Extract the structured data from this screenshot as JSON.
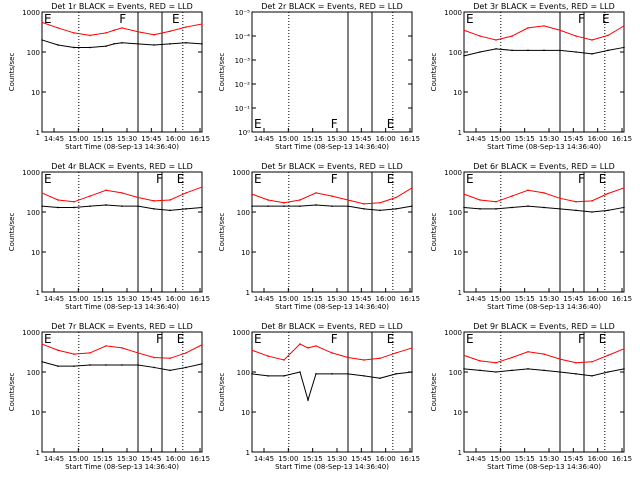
{
  "chart_data": [
    {
      "type": "line",
      "title": "Det 1r BLACK = Events, RED = LLD",
      "xlabel": "Start Time (08-Sep-13 14:36:40)",
      "ylabel": "Counts/sec",
      "x_ticks": [
        "14:45",
        "15:00",
        "15:15",
        "15:30",
        "15:45",
        "16:00",
        "16:15"
      ],
      "y_scale": "log",
      "y_ticks": [
        "1",
        "10",
        "100",
        "1000"
      ],
      "ylim": [
        1,
        1000
      ],
      "series": [
        {
          "name": "Events",
          "color": "#000000",
          "x": [
            0,
            0.1,
            0.2,
            0.3,
            0.4,
            0.45,
            0.5,
            0.6,
            0.7,
            0.8,
            0.9,
            1
          ],
          "y": [
            200,
            150,
            130,
            130,
            140,
            160,
            170,
            160,
            150,
            160,
            170,
            160
          ]
        },
        {
          "name": "LLD",
          "color": "#ff0000",
          "x": [
            0,
            0.1,
            0.2,
            0.3,
            0.4,
            0.45,
            0.5,
            0.6,
            0.7,
            0.8,
            0.9,
            1
          ],
          "y": [
            550,
            400,
            300,
            260,
            300,
            350,
            400,
            320,
            270,
            330,
            420,
            500
          ]
        }
      ],
      "markers": [
        {
          "label": "E",
          "x": 0.0
        },
        {
          "label": "F",
          "x": 0.47
        },
        {
          "label": "E",
          "x": 0.8
        }
      ]
    },
    {
      "type": "line",
      "title": "Det 2r BLACK = Events, RED = LLD",
      "xlabel": "Start Time (08-Sep-13 14:36:40)",
      "ylabel": "Counts/sec",
      "x_ticks": [
        "14:45",
        "15:00",
        "15:15",
        "15:30",
        "15:45",
        "16:00",
        "16:15"
      ],
      "y_scale": "log",
      "y_ticks": [
        "10⁻⁵",
        "10⁻⁴",
        "10⁻³",
        "10⁻²",
        "10⁻¹",
        "10⁰"
      ],
      "ylim": [
        1,
        1e-05
      ],
      "series": [],
      "markers": [
        {
          "label": "E",
          "x": 0.0
        },
        {
          "label": "F",
          "x": 0.48
        },
        {
          "label": "E",
          "x": 0.83
        }
      ]
    },
    {
      "type": "line",
      "title": "Det 3r BLACK = Events, RED = LLD",
      "xlabel": "Start Time (08-Sep-13 14:36:40)",
      "ylabel": "Counts/sec",
      "x_ticks": [
        "14:45",
        "15:00",
        "15:15",
        "15:30",
        "15:45",
        "16:00",
        "16:15"
      ],
      "y_scale": "log",
      "y_ticks": [
        "1",
        "10",
        "100",
        "1000"
      ],
      "ylim": [
        1,
        1000
      ],
      "series": [
        {
          "name": "Events",
          "color": "#000000",
          "x": [
            0,
            0.1,
            0.2,
            0.3,
            0.4,
            0.5,
            0.6,
            0.7,
            0.8,
            0.9,
            1
          ],
          "y": [
            80,
            100,
            120,
            110,
            110,
            110,
            110,
            100,
            90,
            110,
            130
          ]
        },
        {
          "name": "LLD",
          "color": "#ff0000",
          "x": [
            0,
            0.1,
            0.2,
            0.3,
            0.4,
            0.5,
            0.6,
            0.7,
            0.8,
            0.9,
            1
          ],
          "y": [
            350,
            250,
            200,
            250,
            400,
            450,
            350,
            250,
            200,
            260,
            450
          ]
        }
      ],
      "markers": [
        {
          "label": "E",
          "x": 0.0
        },
        {
          "label": "F",
          "x": 0.7
        },
        {
          "label": "E",
          "x": 0.85
        }
      ]
    },
    {
      "type": "line",
      "title": "Det 4r BLACK = Events, RED = LLD",
      "xlabel": "Start Time (08-Sep-13 14:36:40)",
      "ylabel": "Counts/sec",
      "x_ticks": [
        "14:45",
        "15:00",
        "15:15",
        "15:30",
        "15:45",
        "16:00",
        "16:15"
      ],
      "y_scale": "log",
      "y_ticks": [
        "1",
        "10",
        "100",
        "1000"
      ],
      "ylim": [
        1,
        1000
      ],
      "series": [
        {
          "name": "Events",
          "color": "#000000",
          "x": [
            0,
            0.1,
            0.2,
            0.3,
            0.4,
            0.5,
            0.6,
            0.7,
            0.8,
            0.9,
            1
          ],
          "y": [
            140,
            130,
            130,
            140,
            150,
            140,
            140,
            120,
            110,
            120,
            130
          ]
        },
        {
          "name": "LLD",
          "color": "#ff0000",
          "x": [
            0,
            0.1,
            0.2,
            0.3,
            0.4,
            0.5,
            0.6,
            0.7,
            0.8,
            0.9,
            1
          ],
          "y": [
            300,
            200,
            180,
            250,
            350,
            300,
            230,
            190,
            200,
            300,
            420
          ]
        }
      ],
      "markers": [
        {
          "label": "E",
          "x": 0.0
        },
        {
          "label": "F",
          "x": 0.7
        },
        {
          "label": "E",
          "x": 0.83
        }
      ]
    },
    {
      "type": "line",
      "title": "Det 5r BLACK = Events, RED = LLD",
      "xlabel": "Start Time (08-Sep-13 14:36:40)",
      "ylabel": "Counts/sec",
      "x_ticks": [
        "14:45",
        "15:00",
        "15:15",
        "15:30",
        "15:45",
        "16:00",
        "16:15"
      ],
      "y_scale": "log",
      "y_ticks": [
        "1",
        "10",
        "100",
        "1000"
      ],
      "ylim": [
        1,
        1000
      ],
      "series": [
        {
          "name": "Events",
          "color": "#000000",
          "x": [
            0,
            0.1,
            0.2,
            0.3,
            0.4,
            0.5,
            0.6,
            0.7,
            0.8,
            0.9,
            1
          ],
          "y": [
            140,
            140,
            140,
            140,
            150,
            140,
            140,
            120,
            110,
            120,
            140
          ]
        },
        {
          "name": "LLD",
          "color": "#ff0000",
          "x": [
            0,
            0.1,
            0.2,
            0.3,
            0.4,
            0.5,
            0.6,
            0.7,
            0.8,
            0.9,
            1
          ],
          "y": [
            280,
            200,
            170,
            200,
            300,
            250,
            200,
            160,
            170,
            230,
            400
          ]
        }
      ],
      "markers": [
        {
          "label": "E",
          "x": 0.0
        },
        {
          "label": "F",
          "x": 0.48
        },
        {
          "label": "E",
          "x": 0.83
        }
      ]
    },
    {
      "type": "line",
      "title": "Det 6r BLACK = Events, RED = LLD",
      "xlabel": "Start Time (08-Sep-13 14:36:40)",
      "ylabel": "Counts/sec",
      "x_ticks": [
        "14:45",
        "15:00",
        "15:15",
        "15:30",
        "15:45",
        "16:00",
        "16:15"
      ],
      "y_scale": "log",
      "y_ticks": [
        "1",
        "10",
        "100",
        "1000"
      ],
      "ylim": [
        1,
        1000
      ],
      "series": [
        {
          "name": "Events",
          "color": "#000000",
          "x": [
            0,
            0.1,
            0.2,
            0.3,
            0.4,
            0.5,
            0.6,
            0.7,
            0.8,
            0.9,
            1
          ],
          "y": [
            130,
            120,
            120,
            130,
            140,
            130,
            120,
            110,
            100,
            110,
            130
          ]
        },
        {
          "name": "LLD",
          "color": "#ff0000",
          "x": [
            0,
            0.1,
            0.2,
            0.3,
            0.4,
            0.5,
            0.6,
            0.7,
            0.8,
            0.9,
            1
          ],
          "y": [
            280,
            200,
            180,
            250,
            350,
            300,
            220,
            180,
            190,
            290,
            400
          ]
        }
      ],
      "markers": [
        {
          "label": "E",
          "x": 0.0
        },
        {
          "label": "F",
          "x": 0.7
        },
        {
          "label": "E",
          "x": 0.83
        }
      ]
    },
    {
      "type": "line",
      "title": "Det 7r BLACK = Events, RED = LLD",
      "xlabel": "Start Time (08-Sep-13 14:36:40)",
      "ylabel": "Counts/sec",
      "x_ticks": [
        "14:45",
        "15:00",
        "15:15",
        "15:30",
        "15:45",
        "16:00",
        "16:15"
      ],
      "y_scale": "log",
      "y_ticks": [
        "1",
        "10",
        "100",
        "1000"
      ],
      "ylim": [
        1,
        1000
      ],
      "series": [
        {
          "name": "Events",
          "color": "#000000",
          "x": [
            0,
            0.1,
            0.2,
            0.3,
            0.4,
            0.5,
            0.6,
            0.7,
            0.8,
            0.9,
            1
          ],
          "y": [
            180,
            140,
            140,
            150,
            150,
            150,
            150,
            130,
            110,
            130,
            160
          ]
        },
        {
          "name": "LLD",
          "color": "#ff0000",
          "x": [
            0,
            0.1,
            0.2,
            0.3,
            0.4,
            0.5,
            0.6,
            0.7,
            0.8,
            0.9,
            1
          ],
          "y": [
            500,
            350,
            280,
            300,
            450,
            400,
            300,
            230,
            220,
            300,
            480
          ]
        }
      ],
      "markers": [
        {
          "label": "E",
          "x": 0.0
        },
        {
          "label": "F",
          "x": 0.7
        },
        {
          "label": "E",
          "x": 0.83
        }
      ]
    },
    {
      "type": "line",
      "title": "Det 8r BLACK = Events, RED = LLD",
      "xlabel": "Start Time (08-Sep-13 14:36:40)",
      "ylabel": "Counts/sec",
      "x_ticks": [
        "14:45",
        "15:00",
        "15:15",
        "15:30",
        "15:45",
        "16:00",
        "16:15"
      ],
      "y_scale": "log",
      "y_ticks": [
        "1",
        "10",
        "100",
        "1000"
      ],
      "ylim": [
        1,
        1000
      ],
      "series": [
        {
          "name": "Events",
          "color": "#000000",
          "x": [
            0,
            0.1,
            0.2,
            0.3,
            0.35,
            0.4,
            0.5,
            0.6,
            0.7,
            0.8,
            0.9,
            1
          ],
          "y": [
            90,
            80,
            80,
            100,
            20,
            90,
            90,
            90,
            80,
            70,
            90,
            100
          ]
        },
        {
          "name": "LLD",
          "color": "#ff0000",
          "x": [
            0,
            0.1,
            0.2,
            0.3,
            0.35,
            0.4,
            0.5,
            0.6,
            0.7,
            0.8,
            0.9,
            1
          ],
          "y": [
            350,
            250,
            200,
            500,
            400,
            450,
            300,
            230,
            200,
            220,
            300,
            400
          ]
        }
      ],
      "markers": [
        {
          "label": "E",
          "x": 0.0
        },
        {
          "label": "F",
          "x": 0.48
        },
        {
          "label": "E",
          "x": 0.83
        }
      ]
    },
    {
      "type": "line",
      "title": "Det 9r BLACK = Events, RED = LLD",
      "xlabel": "Start Time (08-Sep-13 14:36:40)",
      "ylabel": "Counts/sec",
      "x_ticks": [
        "14:45",
        "15:00",
        "15:15",
        "15:30",
        "15:45",
        "16:00",
        "16:15"
      ],
      "y_scale": "log",
      "y_ticks": [
        "1",
        "10",
        "100",
        "1000"
      ],
      "ylim": [
        1,
        1000
      ],
      "series": [
        {
          "name": "Events",
          "color": "#000000",
          "x": [
            0,
            0.1,
            0.2,
            0.3,
            0.4,
            0.5,
            0.6,
            0.7,
            0.8,
            0.9,
            1
          ],
          "y": [
            120,
            110,
            100,
            110,
            120,
            110,
            100,
            90,
            80,
            100,
            120
          ]
        },
        {
          "name": "LLD",
          "color": "#ff0000",
          "x": [
            0,
            0.1,
            0.2,
            0.3,
            0.4,
            0.5,
            0.6,
            0.7,
            0.8,
            0.9,
            1
          ],
          "y": [
            260,
            190,
            170,
            230,
            320,
            280,
            210,
            170,
            180,
            260,
            380
          ]
        }
      ],
      "markers": [
        {
          "label": "E",
          "x": 0.0
        },
        {
          "label": "F",
          "x": 0.7
        },
        {
          "label": "E",
          "x": 0.83
        }
      ]
    }
  ]
}
